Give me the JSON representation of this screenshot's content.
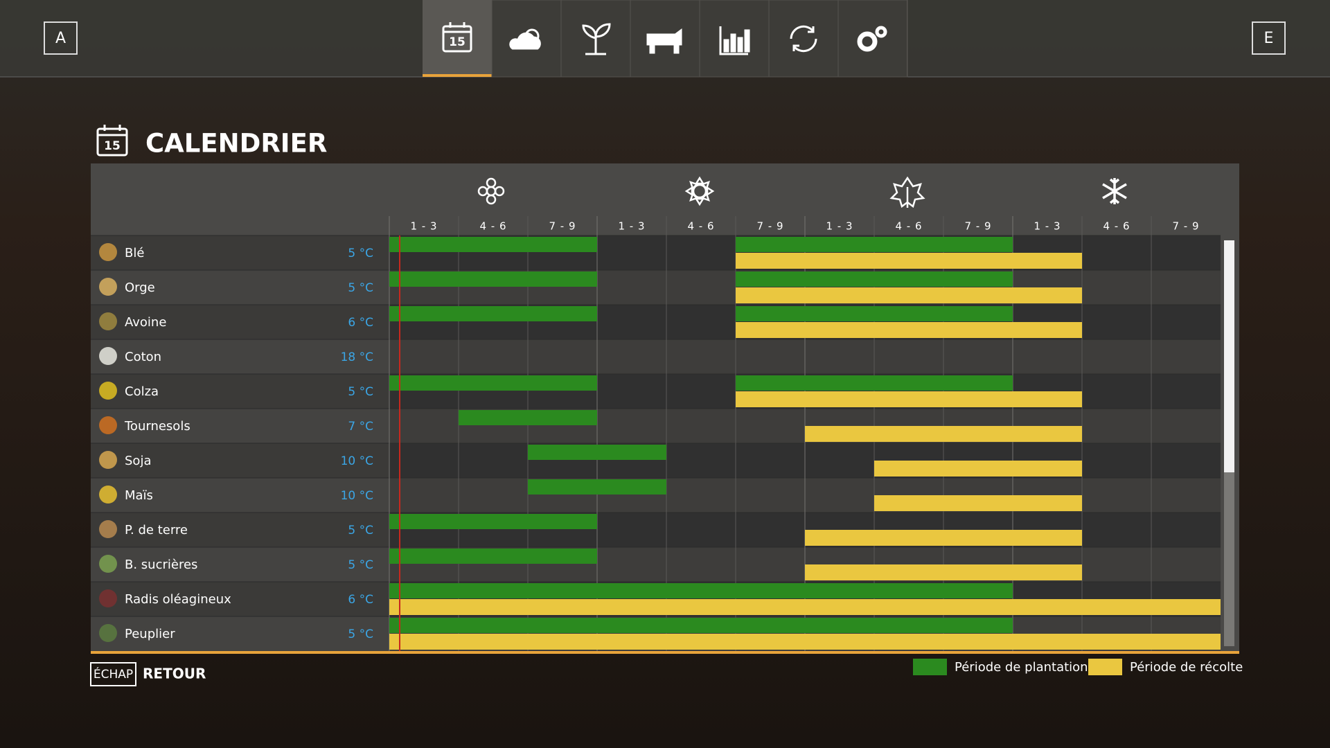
{
  "header": {
    "left_key": "A",
    "right_key": "E",
    "calendar_day": "15"
  },
  "title": "CALENDRIER",
  "calendar": {
    "periods": [
      "1 - 3",
      "4 - 6",
      "7 - 9",
      "1 - 3",
      "4 - 6",
      "7 - 9",
      "1 - 3",
      "4 - 6",
      "7 - 9",
      "1 - 3",
      "4 - 6",
      "7 - 9"
    ],
    "crops": [
      {
        "name": "Blé",
        "temperature": "5 °C",
        "planting": [
          [
            0,
            2
          ],
          [
            5,
            8
          ]
        ],
        "harvest": [
          [
            5,
            9
          ]
        ]
      },
      {
        "name": "Orge",
        "temperature": "5 °C",
        "planting": [
          [
            0,
            2
          ],
          [
            5,
            8
          ]
        ],
        "harvest": [
          [
            5,
            9
          ]
        ]
      },
      {
        "name": "Avoine",
        "temperature": "6 °C",
        "planting": [
          [
            0,
            2
          ],
          [
            5,
            8
          ]
        ],
        "harvest": [
          [
            5,
            9
          ]
        ]
      },
      {
        "name": "Coton",
        "temperature": "18 °C",
        "planting": [],
        "harvest": []
      },
      {
        "name": "Colza",
        "temperature": "5 °C",
        "planting": [
          [
            0,
            2
          ],
          [
            5,
            8
          ]
        ],
        "harvest": [
          [
            5,
            9
          ]
        ]
      },
      {
        "name": "Tournesols",
        "temperature": "7 °C",
        "planting": [
          [
            1,
            2
          ]
        ],
        "harvest": [
          [
            6,
            9
          ]
        ]
      },
      {
        "name": "Soja",
        "temperature": "10 °C",
        "planting": [
          [
            2,
            3
          ]
        ],
        "harvest": [
          [
            7,
            9
          ]
        ]
      },
      {
        "name": "Maïs",
        "temperature": "10 °C",
        "planting": [
          [
            2,
            3
          ]
        ],
        "harvest": [
          [
            7,
            9
          ]
        ]
      },
      {
        "name": "P. de terre",
        "temperature": "5 °C",
        "planting": [
          [
            0,
            2
          ]
        ],
        "harvest": [
          [
            6,
            9
          ]
        ]
      },
      {
        "name": "B. sucrières",
        "temperature": "5 °C",
        "planting": [
          [
            0,
            2
          ]
        ],
        "harvest": [
          [
            6,
            9
          ]
        ]
      },
      {
        "name": "Radis oléagineux",
        "temperature": "6 °C",
        "planting": [
          [
            0,
            8
          ]
        ],
        "harvest": [
          [
            0,
            11
          ]
        ]
      },
      {
        "name": "Peuplier",
        "temperature": "5 °C",
        "planting": [
          [
            0,
            8
          ]
        ],
        "harvest": [
          [
            0,
            11
          ]
        ]
      }
    ]
  },
  "legend": {
    "planting": "Période de plantation",
    "harvest": "Période de récolte"
  },
  "footer": {
    "key": "ÉCHAP",
    "action": "RETOUR"
  }
}
